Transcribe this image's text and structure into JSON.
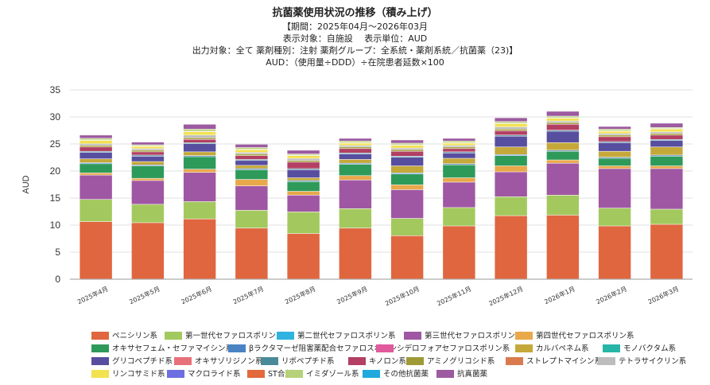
{
  "chart_data": {
    "type": "bar",
    "stacked": true,
    "title": "抗菌薬使用状況の推移（積み上げ）",
    "subtitles": [
      "【期間：2025年04月～2026年03月",
      "表示対象：自施設　 表示単位：AUD",
      "出力対象：全て 薬剤種別：注射 薬剤グループ：全系統・薬剤系統／抗菌薬（23)】",
      "AUD：（使用量÷DDD）÷在院患者延数×100"
    ],
    "ylabel": "AUD",
    "xlabel": "",
    "ylim": [
      0,
      35
    ],
    "yticks": [
      "0",
      "5",
      "10",
      "15",
      "20",
      "25",
      "30",
      "35"
    ],
    "grid": true,
    "legend_position": "bottom",
    "categories": [
      "2025年4月",
      "2025年5月",
      "2025年6月",
      "2025年7月",
      "2025年8月",
      "2025年9月",
      "2025年10月",
      "2025年11月",
      "2025年12月",
      "2026年1月",
      "2026年2月",
      "2026年3月"
    ],
    "series": [
      {
        "name": "ペニシリン系",
        "color": "#e0663f",
        "values": [
          10.6,
          10.4,
          11.1,
          9.4,
          8.4,
          9.4,
          8.0,
          9.8,
          11.7,
          11.8,
          9.8,
          10.1
        ]
      },
      {
        "name": "第一世代セファロスポリン系",
        "color": "#a3c95e",
        "values": [
          4.1,
          3.4,
          3.2,
          3.3,
          4.0,
          3.6,
          3.2,
          3.4,
          3.5,
          3.7,
          3.3,
          2.8
        ]
      },
      {
        "name": "第二世代セファロスポリン系",
        "color": "#2fb3e0",
        "values": [
          0,
          0,
          0,
          0,
          0,
          0,
          0,
          0,
          0,
          0,
          0,
          0
        ]
      },
      {
        "name": "第三世代セファロスポリン系",
        "color": "#9f57a3",
        "values": [
          4.5,
          4.4,
          5.4,
          4.5,
          3.1,
          5.3,
          5.3,
          4.7,
          4.6,
          5.9,
          7.3,
          7.5
        ]
      },
      {
        "name": "第四世代セファロスポリン系",
        "color": "#e9a84a",
        "values": [
          0.4,
          0.4,
          0.6,
          1.2,
          0.7,
          0.8,
          0.9,
          0.8,
          1.1,
          0.6,
          0.5,
          0.5
        ]
      },
      {
        "name": "オキサセフェム・セファマイシン系",
        "color": "#2e9a5a",
        "values": [
          1.7,
          2.3,
          2.3,
          1.8,
          1.8,
          2.1,
          2.0,
          2.4,
          1.9,
          1.6,
          1.4,
          1.8
        ]
      },
      {
        "name": "βラクタマーゼ阻害薬配合セファロスポリン",
        "color": "#4a83c4",
        "values": [
          0.2,
          0.2,
          0.2,
          0.2,
          0.2,
          0.2,
          0.2,
          0.2,
          0.2,
          0.2,
          0.2,
          0.2
        ]
      },
      {
        "name": "シデロフォアセファロスポリン系",
        "color": "#e05a9c",
        "values": [
          0,
          0,
          0,
          0,
          0,
          0,
          0,
          0,
          0,
          0,
          0,
          0
        ]
      },
      {
        "name": "カルバペネム系",
        "color": "#c4a83a",
        "values": [
          0.7,
          0.6,
          0.7,
          0.6,
          0.5,
          0.7,
          1.3,
          1.0,
          1.4,
          1.4,
          1.1,
          1.5
        ]
      },
      {
        "name": "モノバクタム系",
        "color": "#27b5a8",
        "values": [
          0,
          0,
          0,
          0,
          0,
          0,
          0,
          0,
          0,
          0,
          0,
          0
        ]
      },
      {
        "name": "グリコペプチド系",
        "color": "#574ea0",
        "values": [
          1.2,
          1.0,
          1.5,
          0.9,
          1.5,
          1.0,
          1.6,
          1.0,
          2.0,
          2.1,
          1.6,
          1.2
        ]
      },
      {
        "name": "オキサゾリジノン系",
        "color": "#e8707a",
        "values": [
          0,
          0,
          0,
          0,
          0,
          0,
          0,
          0,
          0,
          0,
          0,
          0
        ]
      },
      {
        "name": "リポペプチド系",
        "color": "#4a8a98",
        "values": [
          0.2,
          0.2,
          0.2,
          0.2,
          0.2,
          0.2,
          0.2,
          0.2,
          0.2,
          0.2,
          0.2,
          0.2
        ]
      },
      {
        "name": "キノロン系",
        "color": "#b33f63",
        "values": [
          0.8,
          0.6,
          0.6,
          0.7,
          1.2,
          0.8,
          0.9,
          0.6,
          0.8,
          1.1,
          0.9,
          0.8
        ]
      },
      {
        "name": "アミノグリコシド系",
        "color": "#9e9a35",
        "values": [
          0.3,
          0.3,
          0.3,
          0.3,
          0.3,
          0.3,
          0.3,
          0.3,
          0.3,
          0.3,
          0.3,
          0.3
        ]
      },
      {
        "name": "ストレプトマイシン系",
        "color": "#d97b4e",
        "values": [
          0,
          0,
          0,
          0,
          0,
          0,
          0,
          0,
          0,
          0,
          0,
          0
        ]
      },
      {
        "name": "テトラサイクリン系",
        "color": "#bdbdbd",
        "values": [
          0.3,
          0.3,
          0.5,
          0.3,
          0.4,
          0.3,
          0.3,
          0.3,
          0.4,
          0.3,
          0.3,
          0.3
        ]
      },
      {
        "name": "リンコサミド系",
        "color": "#f2e24f",
        "values": [
          0.6,
          0.4,
          0.6,
          0.5,
          0.5,
          0.4,
          0.5,
          0.4,
          0.6,
          0.5,
          0.4,
          0.5
        ]
      },
      {
        "name": "マクロライド系",
        "color": "#6c6fe0",
        "values": [
          0,
          0,
          0,
          0,
          0,
          0,
          0,
          0,
          0,
          0,
          0,
          0
        ]
      },
      {
        "name": "ST合剤",
        "color": "#e36a3c",
        "values": [
          0.1,
          0.1,
          0.1,
          0.1,
          0.1,
          0.1,
          0.1,
          0.1,
          0.1,
          0.1,
          0.1,
          0.1
        ]
      },
      {
        "name": "イミダゾール系",
        "color": "#b5d27a",
        "values": [
          0.3,
          0.2,
          0.4,
          0.3,
          0.2,
          0.3,
          0.3,
          0.3,
          0.3,
          0.3,
          0.3,
          0.2
        ]
      },
      {
        "name": "その他抗菌薬",
        "color": "#1fa9dc",
        "values": [
          0,
          0,
          0,
          0,
          0,
          0,
          0,
          0,
          0,
          0,
          0,
          0
        ]
      },
      {
        "name": "抗真菌薬",
        "color": "#9c5aa0",
        "values": [
          0.6,
          0.5,
          0.9,
          0.6,
          0.7,
          0.5,
          0.6,
          0.5,
          0.7,
          0.9,
          0.5,
          0.8
        ]
      }
    ]
  }
}
